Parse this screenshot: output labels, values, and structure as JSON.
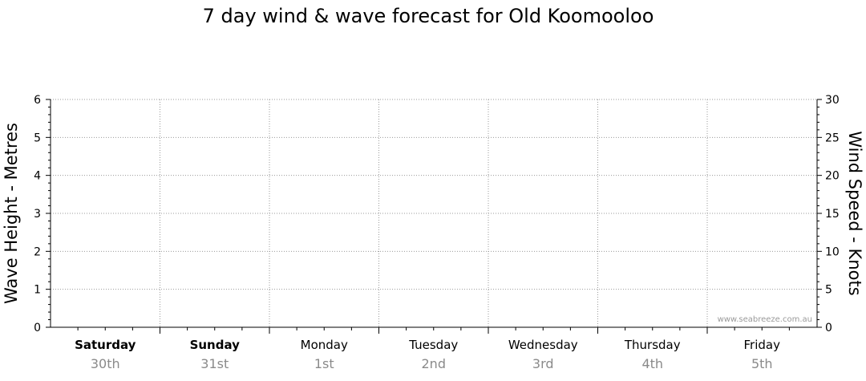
{
  "title": "7 day wind & wave forecast for Old Koomooloo",
  "watermark": "www.seabreeze.com.au",
  "chart_data": {
    "type": "line",
    "title": "7 day wind & wave forecast for Old Koomooloo",
    "ylabel_left": "Wave Height - Metres",
    "ylabel_right": "Wind Speed - Knots",
    "ylim_left": [
      0,
      6
    ],
    "ylim_right": [
      0,
      30
    ],
    "yticks_left": [
      "0",
      "1",
      "2",
      "3",
      "4",
      "5",
      "6"
    ],
    "yticks_right": [
      "0",
      "5",
      "10",
      "15",
      "20",
      "25",
      "30"
    ],
    "grid": true,
    "days": [
      {
        "name": "Saturday",
        "date": "30th",
        "bold": true
      },
      {
        "name": "Sunday",
        "date": "31st",
        "bold": true
      },
      {
        "name": "Monday",
        "date": "1st",
        "bold": false
      },
      {
        "name": "Tuesday",
        "date": "2nd",
        "bold": false
      },
      {
        "name": "Wednesday",
        "date": "3rd",
        "bold": false
      },
      {
        "name": "Thursday",
        "date": "4th",
        "bold": false
      },
      {
        "name": "Friday",
        "date": "5th",
        "bold": false
      }
    ],
    "series": []
  }
}
